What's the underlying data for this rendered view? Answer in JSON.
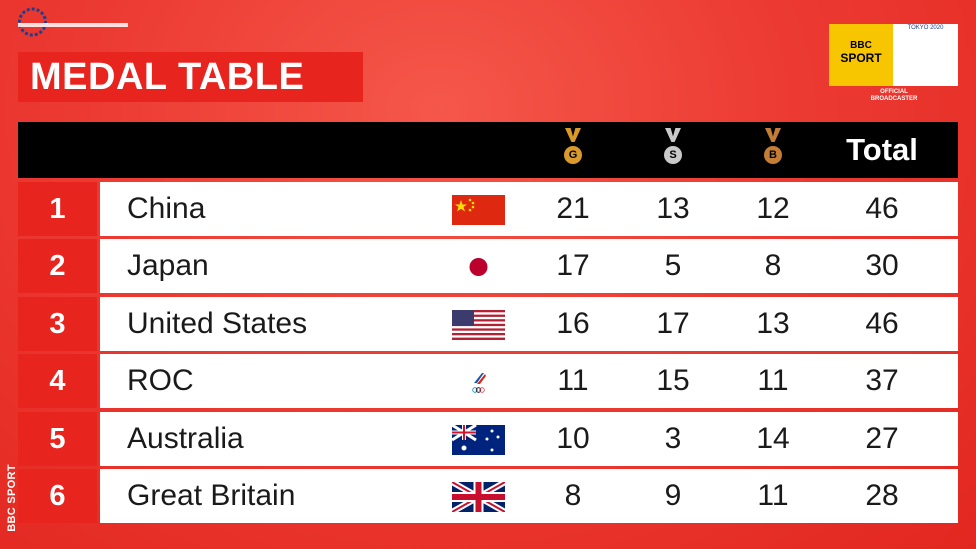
{
  "header": {
    "title": "MEDAL TABLE"
  },
  "logo": {
    "line1": "BBC",
    "line2": "SPORT",
    "games": "TOKYO 2020",
    "caption": "OFFICIAL BROADCASTER",
    "watermark": "BBC SPORT"
  },
  "table": {
    "columns": [
      "G",
      "S",
      "B",
      "Total"
    ],
    "rows": [
      [
        "1",
        "China",
        "21",
        "13",
        "12",
        "46"
      ],
      [
        "2",
        "Japan",
        "17",
        "5",
        "8",
        "30"
      ],
      [
        "3",
        "United States",
        "16",
        "17",
        "13",
        "46"
      ],
      [
        "4",
        "ROC",
        "11",
        "15",
        "11",
        "37"
      ],
      [
        "5",
        "Australia",
        "10",
        "3",
        "14",
        "27"
      ],
      [
        "6",
        "Great Britain",
        "8",
        "9",
        "11",
        "28"
      ]
    ]
  }
}
